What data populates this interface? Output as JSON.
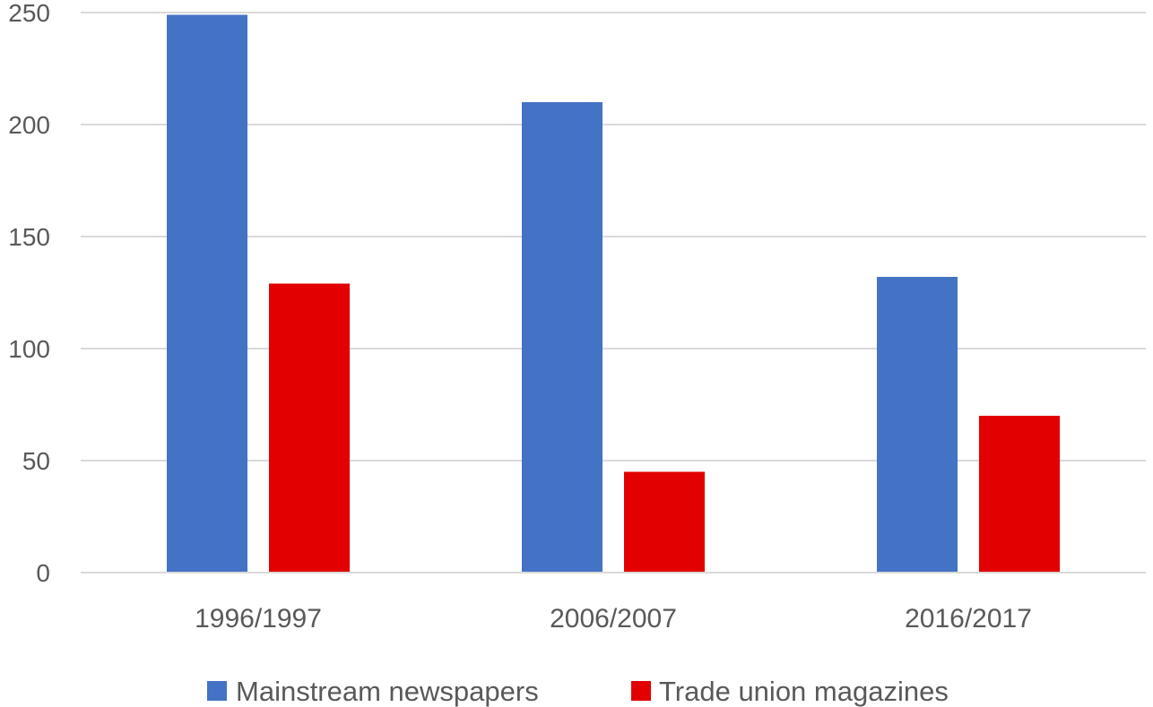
{
  "chart_data": {
    "type": "bar",
    "categories": [
      "1996/1997",
      "2006/2007",
      "2016/2017"
    ],
    "series": [
      {
        "name": "Mainstream newspapers",
        "values": [
          249,
          210,
          132
        ],
        "color": "#4472C4"
      },
      {
        "name": "Trade union magazines",
        "values": [
          129,
          45,
          70
        ],
        "color": "#E20000"
      }
    ],
    "yticks": [
      "0",
      "50",
      "100",
      "150",
      "200",
      "250"
    ],
    "ylim": [
      0,
      250
    ],
    "grid": true,
    "legend_position": "bottom",
    "title": "",
    "xlabel": "",
    "ylabel": ""
  }
}
